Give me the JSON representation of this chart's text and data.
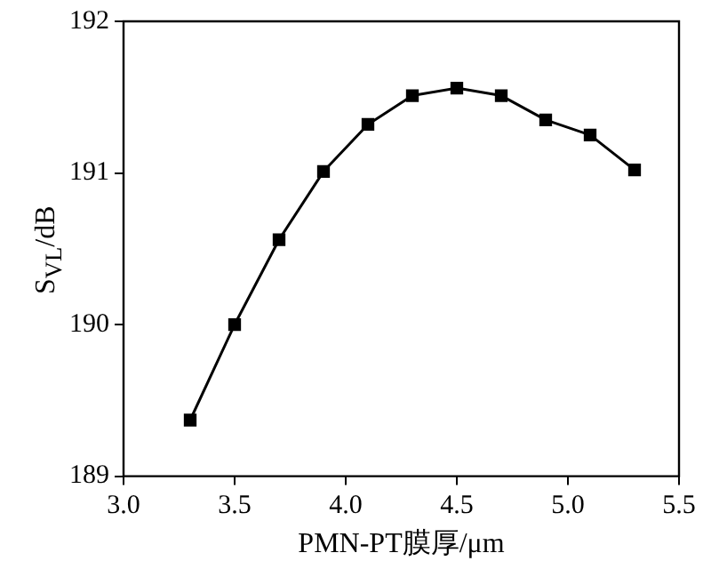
{
  "chart_data": {
    "type": "line",
    "xlabel": "PMN-PT膜厚/μm",
    "ylabel": "S$_{VL}$/dB",
    "x": [
      3.3,
      3.5,
      3.7,
      3.9,
      4.1,
      4.3,
      4.5,
      4.7,
      4.9,
      5.1,
      5.3
    ],
    "series": [
      {
        "color": "#000000",
        "values": [
          189.37,
          190.0,
          190.56,
          191.01,
          191.32,
          191.51,
          191.56,
          191.51,
          191.35,
          191.25,
          191.02
        ]
      }
    ],
    "xlim": [
      3.0,
      5.5
    ],
    "xticks": [
      {
        "value": 3.0,
        "label": "3.0"
      },
      {
        "value": 3.5,
        "label": "3.5"
      },
      {
        "value": 4.0,
        "label": "4.0"
      },
      {
        "value": 4.5,
        "label": "4.5"
      },
      {
        "value": 5.0,
        "label": "5.0"
      },
      {
        "value": 5.5,
        "label": "5.5"
      }
    ],
    "ylim": [
      189,
      192
    ],
    "yticks": [
      189,
      190,
      191,
      192
    ],
    "grid": false,
    "legend": false,
    "marker": "square",
    "line_style": "solid"
  }
}
